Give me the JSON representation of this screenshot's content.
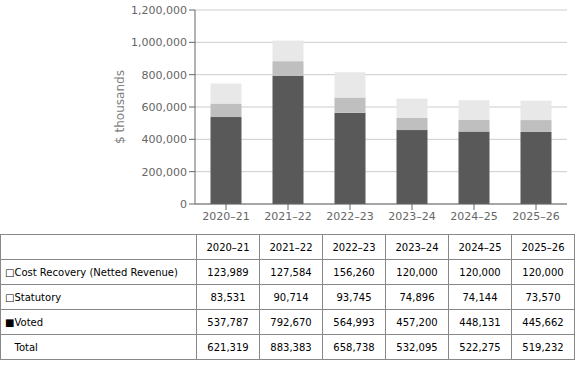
{
  "chart_data": {
    "type": "bar",
    "stacked": true,
    "grid": true,
    "categories": [
      "2020–21",
      "2021–22",
      "2022–23",
      "2023–24",
      "2024–25",
      "2025–26"
    ],
    "ylabel": "$ thousands",
    "ylim": [
      0,
      1200000
    ],
    "yticks": [
      {
        "value": 0,
        "label": "0"
      },
      {
        "value": 200000,
        "label": "200,000"
      },
      {
        "value": 400000,
        "label": "400,000"
      },
      {
        "value": 600000,
        "label": "600,000"
      },
      {
        "value": 800000,
        "label": "800,000"
      },
      {
        "value": 1000000,
        "label": "1,000,000"
      },
      {
        "value": 1200000,
        "label": "1,200,000"
      }
    ],
    "series": [
      {
        "name": "■Voted",
        "color": "#595959",
        "values": [
          537787,
          792670,
          564993,
          457200,
          448131,
          445662
        ],
        "value_labels": [
          "537,787",
          "792,670",
          "564,993",
          "457,200",
          "448,131",
          "445,662"
        ]
      },
      {
        "name": "□Statutory",
        "color": "#bfbfbf",
        "values": [
          83531,
          90714,
          93745,
          74896,
          74144,
          73570
        ],
        "value_labels": [
          "83,531",
          "90,714",
          "93,745",
          "74,896",
          "74,144",
          "73,570"
        ]
      },
      {
        "name": "□Cost Recovery (Netted Revenue)",
        "color": "#e8e8e8",
        "values": [
          123989,
          127584,
          156260,
          120000,
          120000,
          120000
        ],
        "value_labels": [
          "123,989",
          "127,584",
          "156,260",
          "120,000",
          "120,000",
          "120,000"
        ]
      }
    ],
    "totals": {
      "name": "   Total",
      "values": [
        621319,
        883383,
        658738,
        532095,
        522275,
        519232
      ],
      "value_labels": [
        "621,319",
        "883,383",
        "658,738",
        "532,095",
        "522,275",
        "519,232"
      ]
    }
  }
}
